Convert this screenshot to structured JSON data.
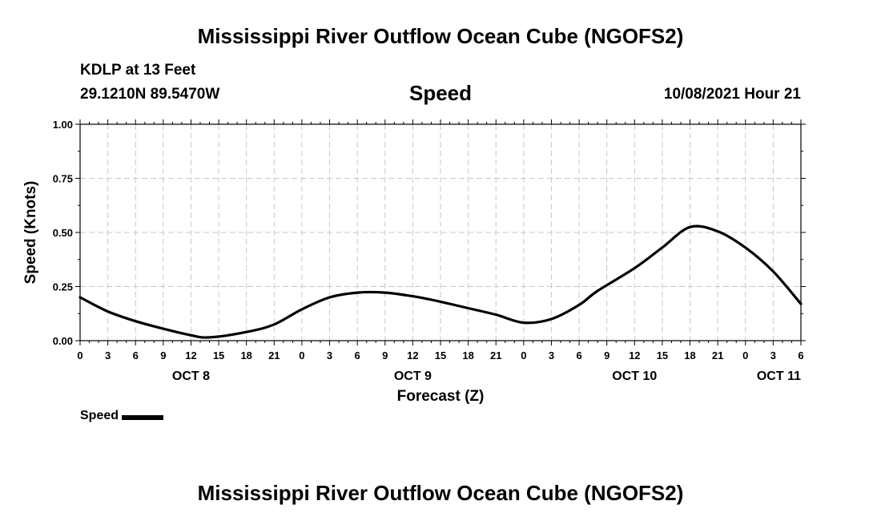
{
  "header": {
    "title": "Mississippi River Outflow Ocean Cube (NGOFS2)",
    "station": "KDLP at 13 Feet",
    "coords": "29.1210N  89.5470W",
    "variable": "Speed",
    "datetime": "10/08/2021 Hour 21"
  },
  "footer": {
    "title": "Mississippi River Outflow Ocean Cube (NGOFS2)"
  },
  "legend": {
    "label": "Speed",
    "color": "#000000"
  },
  "chart_data": {
    "type": "line",
    "title": "Speed",
    "xlabel": "Forecast (Z)",
    "ylabel": "Speed (Knots)",
    "ylim": [
      0,
      1
    ],
    "xlim": [
      0,
      78
    ],
    "x_unit": "hours since OCT 8 00Z",
    "grid": true,
    "yticks": [
      0,
      0.25,
      0.5,
      0.75,
      1
    ],
    "ytick_labels": [
      "0.00",
      "0.25",
      "0.50",
      "0.75",
      "1.00"
    ],
    "xtick_labels": [
      "0",
      "3",
      "6",
      "9",
      "12",
      "15",
      "18",
      "21",
      "0",
      "3",
      "6",
      "9",
      "12",
      "15",
      "18",
      "21",
      "0",
      "3",
      "6",
      "9",
      "12",
      "15",
      "18",
      "21",
      "0",
      "3",
      "6"
    ],
    "day_labels": [
      {
        "label": "OCT 8",
        "hour": 12
      },
      {
        "label": "OCT 9",
        "hour": 36
      },
      {
        "label": "OCT 10",
        "hour": 60
      },
      {
        "label": "OCT 11",
        "hour": 78
      }
    ],
    "series": [
      {
        "name": "Speed",
        "x": [
          0,
          3,
          6,
          9,
          12,
          14,
          18,
          21,
          24,
          27,
          30,
          33,
          36,
          39,
          42,
          45,
          48,
          51,
          54,
          56,
          60,
          63,
          66,
          69,
          72,
          75,
          78
        ],
        "values": [
          0.2,
          0.135,
          0.09,
          0.055,
          0.025,
          0.015,
          0.04,
          0.075,
          0.145,
          0.2,
          0.222,
          0.222,
          0.205,
          0.18,
          0.15,
          0.12,
          0.083,
          0.1,
          0.165,
          0.23,
          0.335,
          0.43,
          0.525,
          0.505,
          0.43,
          0.32,
          0.17
        ]
      }
    ]
  }
}
